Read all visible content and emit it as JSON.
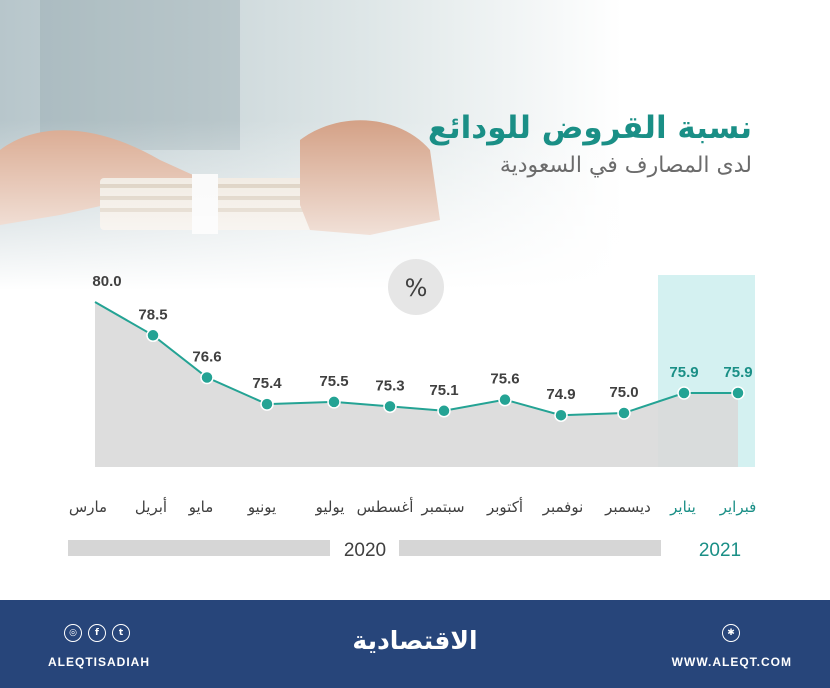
{
  "header": {
    "title": "نسبة القروض للودائع",
    "subtitle": "لدى المصارف في السعودية"
  },
  "chart_data": {
    "type": "line",
    "unit": "%",
    "categories": [
      "مارس",
      "أبريل",
      "مايو",
      "يونيو",
      "يوليو",
      "أغسطس",
      "سبتمبر",
      "أكتوبر",
      "نوفمبر",
      "ديسمبر",
      "يناير",
      "فبراير"
    ],
    "series": [
      {
        "values": [
          80.0,
          78.5,
          76.6,
          75.4,
          75.5,
          75.3,
          75.1,
          75.6,
          74.9,
          75.0,
          75.9,
          75.9
        ]
      }
    ],
    "value_labels": [
      "80.0",
      "78.5",
      "76.6",
      "75.4",
      "75.5",
      "75.3",
      "75.1",
      "75.6",
      "74.9",
      "75.0",
      "75.9",
      "75.9"
    ],
    "year_groups": [
      {
        "label": "2020",
        "first_index": 0,
        "last_index": 9
      },
      {
        "label": "2021",
        "first_index": 10,
        "last_index": 11
      }
    ],
    "highlight_indices": [
      10,
      11
    ],
    "colors": {
      "line": "#24a394",
      "area": "#d9d9d9",
      "highlight": "#cdeeee",
      "label": "#404040",
      "label_2021": "#1a8f86",
      "year_bar": "#d6d6d6"
    }
  },
  "footer": {
    "brand": "الاقتصادية",
    "handle": "ALEQTISADIAH",
    "site": "WWW.ALEQT.COM",
    "social_icons": [
      "instagram-icon",
      "facebook-icon",
      "twitter-icon"
    ],
    "site_icon": "basket-icon",
    "background": "#27457a"
  }
}
